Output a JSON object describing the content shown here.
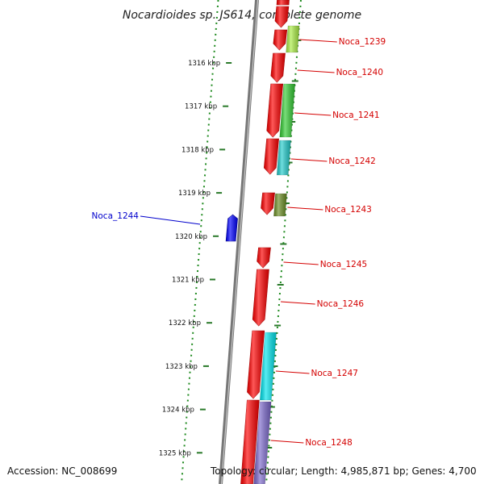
{
  "title": "Nocardioides sp. JS614, complete genome",
  "footer": {
    "accession": "Accession: NC_008699",
    "topology": "Topology: circular; Length: 4,985,871 bp; Genes: 4,700"
  },
  "colors": {
    "backbone": "#777777",
    "dotted_line": "#1f8a1f",
    "tick_mark": "#2a7a2a",
    "forward_label": "#d40000",
    "reverse_label": "#0000cc",
    "cds": "#ff0000",
    "reverse_gene": "#0000ff"
  },
  "scale_ticks": [
    "1316 kbp",
    "1317 kbp",
    "1318 kbp",
    "1319 kbp",
    "1320 kbp",
    "1321 kbp",
    "1322 kbp",
    "1323 kbp",
    "1324 kbp",
    "1325 kbp"
  ],
  "genes": [
    {
      "label": "Noca_1239",
      "strand": "forward",
      "feature_color": "#aaee44"
    },
    {
      "label": "Noca_1240",
      "strand": "forward",
      "feature_color": null
    },
    {
      "label": "Noca_1241",
      "strand": "forward",
      "feature_color": "#33cc33"
    },
    {
      "label": "Noca_1242",
      "strand": "forward",
      "feature_color": "#22cccc"
    },
    {
      "label": "Noca_1243",
      "strand": "forward",
      "feature_color": "#6b8e23"
    },
    {
      "label": "Noca_1244",
      "strand": "reverse",
      "feature_color": null
    },
    {
      "label": "Noca_1245",
      "strand": "forward",
      "feature_color": null
    },
    {
      "label": "Noca_1246",
      "strand": "forward",
      "feature_color": null
    },
    {
      "label": "Noca_1247",
      "strand": "forward",
      "feature_color": "#00e5ee"
    },
    {
      "label": "Noca_1248",
      "strand": "forward",
      "feature_color": "#7b68cc"
    }
  ]
}
